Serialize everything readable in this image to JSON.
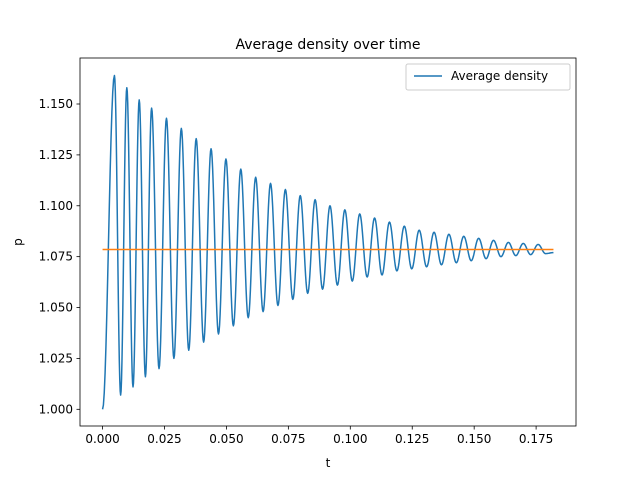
{
  "chart_data": {
    "type": "line",
    "title": "Average density over time",
    "xlabel": "t",
    "ylabel": "p",
    "xlim": [
      -0.0091,
      0.1911
    ],
    "ylim": [
      0.9918,
      1.1726
    ],
    "xticks": [
      "0.000",
      "0.025",
      "0.050",
      "0.075",
      "0.100",
      "0.125",
      "0.150",
      "0.175"
    ],
    "xtick_values": [
      0.0,
      0.025,
      0.05,
      0.075,
      0.1,
      0.125,
      0.15,
      0.175
    ],
    "yticks": [
      "1.000",
      "1.025",
      "1.050",
      "1.075",
      "1.100",
      "1.125",
      "1.150"
    ],
    "ytick_values": [
      1.0,
      1.025,
      1.05,
      1.075,
      1.1,
      1.125,
      1.15
    ],
    "legend": {
      "location": "top-right",
      "entries": [
        "Average density"
      ]
    },
    "grid": false,
    "series": [
      {
        "name": "Average density",
        "color": "#1f77b4",
        "kind": "damped-oscillation",
        "t_start": 0.0,
        "t_end": 0.182,
        "baseline": 1.0785,
        "start_value": 1.0,
        "peak_times": [
          0.0048,
          0.0098,
          0.0148,
          0.0198,
          0.0258,
          0.0318,
          0.0378,
          0.0438,
          0.0498,
          0.0558,
          0.0618,
          0.0678,
          0.0738,
          0.0798,
          0.0858,
          0.0918,
          0.0978,
          0.1038,
          0.1098,
          0.1158,
          0.1218,
          0.1278,
          0.1338,
          0.1398,
          0.1458,
          0.1518,
          0.1578,
          0.1638,
          0.1698,
          0.1758
        ],
        "peak_values": [
          1.164,
          1.158,
          1.152,
          1.148,
          1.143,
          1.138,
          1.133,
          1.128,
          1.123,
          1.118,
          1.114,
          1.111,
          1.108,
          1.105,
          1.103,
          1.1,
          1.098,
          1.096,
          1.094,
          1.092,
          1.09,
          1.088,
          1.087,
          1.086,
          1.085,
          1.084,
          1.083,
          1.082,
          1.0815,
          1.081
        ],
        "trough_times": [
          0.0073,
          0.0123,
          0.0173,
          0.0228,
          0.0288,
          0.0348,
          0.0408,
          0.0468,
          0.0528,
          0.0588,
          0.0648,
          0.0708,
          0.0768,
          0.0828,
          0.0888,
          0.0948,
          0.1008,
          0.1068,
          0.1128,
          0.1188,
          0.1248,
          0.1308,
          0.1368,
          0.1428,
          0.1488,
          0.1548,
          0.1608,
          0.1668,
          0.1728,
          0.1788
        ],
        "trough_values": [
          1.007,
          1.011,
          1.016,
          1.02,
          1.025,
          1.029,
          1.033,
          1.037,
          1.041,
          1.045,
          1.048,
          1.051,
          1.054,
          1.057,
          1.059,
          1.061,
          1.063,
          1.065,
          1.066,
          1.068,
          1.069,
          1.07,
          1.071,
          1.072,
          1.073,
          1.074,
          1.075,
          1.0755,
          1.076,
          1.0765
        ],
        "end_value": 1.077
      },
      {
        "color": "#ff7f0e",
        "kind": "constant",
        "x": [
          0.0,
          0.182
        ],
        "y": [
          1.0785,
          1.0785
        ]
      }
    ]
  }
}
